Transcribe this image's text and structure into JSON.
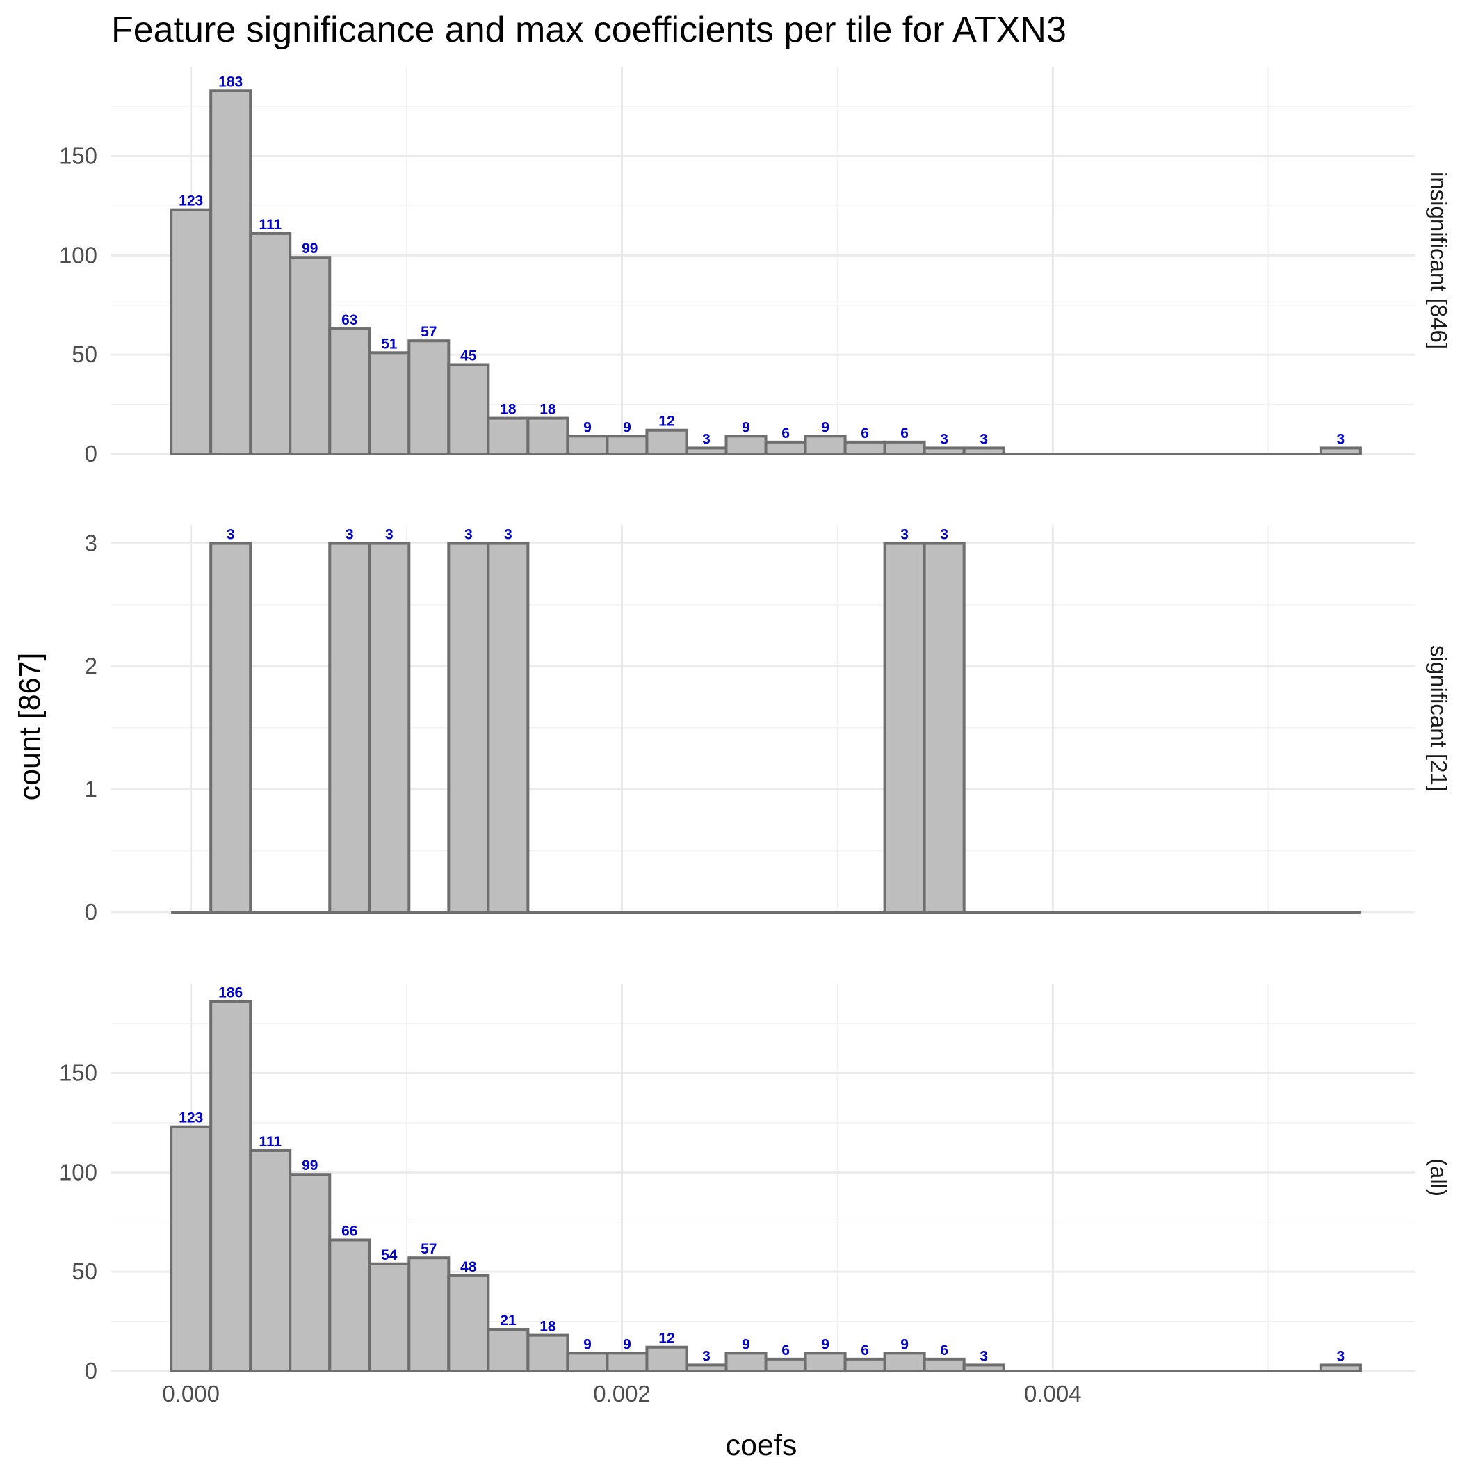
{
  "chart_data": {
    "type": "bar",
    "title": "Feature significance and max coefficients per tile for ATXN3",
    "xlabel": "coefs",
    "ylabel": "count [867]",
    "x_ticks": [
      "0.000",
      "0.002",
      "0.004"
    ],
    "x_tick_values": [
      0,
      0.002,
      0.004
    ],
    "xlim": [
      -0.00037,
      0.00568
    ],
    "bin_width": 0.000184,
    "bin_start": -9.2e-05,
    "grid": true,
    "panels": [
      {
        "strip": "insignificant [846]",
        "ylim": [
          0,
          195
        ],
        "y_ticks": [
          "0",
          "50",
          "100",
          "150"
        ],
        "y_tick_values": [
          0,
          50,
          100,
          150
        ],
        "values": [
          123,
          183,
          111,
          99,
          63,
          51,
          57,
          45,
          18,
          18,
          9,
          9,
          12,
          3,
          9,
          6,
          9,
          6,
          6,
          3,
          3,
          0,
          0,
          0,
          0,
          0,
          0,
          0,
          0,
          3
        ]
      },
      {
        "strip": "significant [21]",
        "ylim": [
          0,
          3.15
        ],
        "y_ticks": [
          "0",
          "1",
          "2",
          "3"
        ],
        "y_tick_values": [
          0,
          1,
          2,
          3
        ],
        "values": [
          0,
          3,
          0,
          0,
          3,
          3,
          0,
          3,
          3,
          0,
          0,
          0,
          0,
          0,
          0,
          0,
          0,
          0,
          3,
          3,
          0,
          0,
          0,
          0,
          0,
          0,
          0,
          0,
          0,
          0
        ]
      },
      {
        "strip": "(all)",
        "ylim": [
          0,
          195
        ],
        "y_ticks": [
          "0",
          "50",
          "100",
          "150"
        ],
        "y_tick_values": [
          0,
          50,
          100,
          150
        ],
        "values": [
          123,
          186,
          111,
          99,
          66,
          54,
          57,
          48,
          21,
          18,
          9,
          9,
          12,
          3,
          9,
          6,
          9,
          6,
          9,
          6,
          3,
          0,
          0,
          0,
          0,
          0,
          0,
          0,
          0,
          3
        ]
      }
    ]
  }
}
